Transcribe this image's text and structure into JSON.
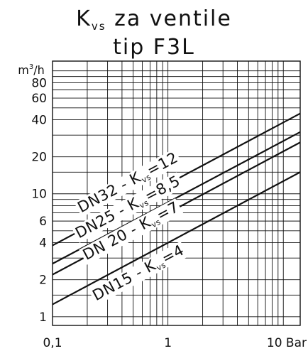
{
  "chart_data": {
    "type": "line",
    "title": {
      "symbol": "K",
      "symbol_sub": "vs",
      "rest": " za ventile",
      "line2": "tip F3L"
    },
    "ylabel": {
      "base": "m",
      "sup": "3",
      "rest": "/h"
    },
    "x_scale": "log",
    "y_scale": "log",
    "xlim": [
      0.1,
      14
    ],
    "ylim": [
      0.85,
      120
    ],
    "grid": true,
    "legend": "none",
    "x_ticks": [
      {
        "value": 0.1,
        "label": "0,1"
      },
      {
        "value": 1,
        "label": "1"
      },
      {
        "value": 10,
        "label": "10 Bar"
      }
    ],
    "y_ticks": [
      {
        "value": 1,
        "label": "1"
      },
      {
        "value": 2,
        "label": "2"
      },
      {
        "value": 4,
        "label": "4"
      },
      {
        "value": 6,
        "label": "6"
      },
      {
        "value": 10,
        "label": "10"
      },
      {
        "value": 20,
        "label": "20"
      },
      {
        "value": 40,
        "label": "40"
      },
      {
        "value": 60,
        "label": "60"
      },
      {
        "value": 80,
        "label": "80"
      }
    ],
    "series": [
      {
        "dn": "DN15",
        "kvs_symbol": "K",
        "kvs_sub": "vs",
        "kvs_value": "=4",
        "x": [
          0.1,
          14
        ],
        "y": [
          1.26,
          15.0
        ],
        "label_at": [
          0.58,
          2.1
        ]
      },
      {
        "dn": "DN 20",
        "kvs_symbol": "K",
        "kvs_sub": "vs",
        "kvs_value": "=7",
        "x": [
          0.1,
          14
        ],
        "y": [
          2.2,
          26.2
        ],
        "label_at": [
          0.5,
          4.6
        ]
      },
      {
        "dn": "DN25",
        "kvs_symbol": "K",
        "kvs_sub": "vs",
        "kvs_value": "=8,5",
        "x": [
          0.1,
          14
        ],
        "y": [
          2.7,
          31.8
        ],
        "label_at": [
          0.47,
          7.2
        ]
      },
      {
        "dn": "DN32",
        "kvs_symbol": "K",
        "kvs_sub": "vs",
        "kvs_value": "=12",
        "x": [
          0.1,
          14
        ],
        "y": [
          3.8,
          45.0
        ],
        "label_at": [
          0.47,
          11.4
        ]
      }
    ]
  }
}
